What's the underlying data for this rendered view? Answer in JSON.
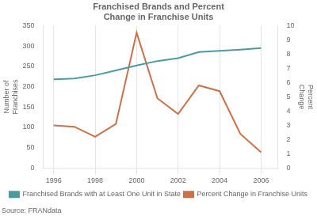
{
  "chart_data": {
    "type": "line",
    "title": "Franchised Brands and Percent\nChange in Franchise Units",
    "ylabel": "Number of\nFranchises",
    "y2label": "Percent\nChange",
    "source": "Source: FRANdata",
    "x": [
      1996,
      1997,
      1998,
      1999,
      2000,
      2001,
      2002,
      2003,
      2004,
      2005,
      2006
    ],
    "xlim": [
      1995.5,
      2006.8
    ],
    "xticks": [
      1996,
      1998,
      2000,
      2002,
      2004,
      2006
    ],
    "ylim": [
      0,
      350
    ],
    "yticks": [
      0,
      50,
      100,
      150,
      200,
      250,
      300,
      350
    ],
    "y2lim": [
      0,
      10
    ],
    "y2ticks": [
      0,
      1,
      2,
      3,
      4,
      5,
      6,
      7,
      8,
      9,
      10
    ],
    "grid": "x",
    "legend": "bottom",
    "series": [
      {
        "name": "Franchised Brands with at Least One Unit in State",
        "color": "#4A9A9E",
        "values": [
          218,
          220,
          228,
          240,
          252,
          263,
          270,
          285,
          288,
          291,
          295
        ]
      },
      {
        "name": "Percent Change in Franchise Units",
        "color": "#C8714A",
        "axis": "y2",
        "values": [
          3.0,
          2.9,
          2.2,
          3.1,
          9.5,
          4.9,
          3.8,
          5.8,
          5.4,
          2.4,
          1.1
        ]
      }
    ]
  }
}
